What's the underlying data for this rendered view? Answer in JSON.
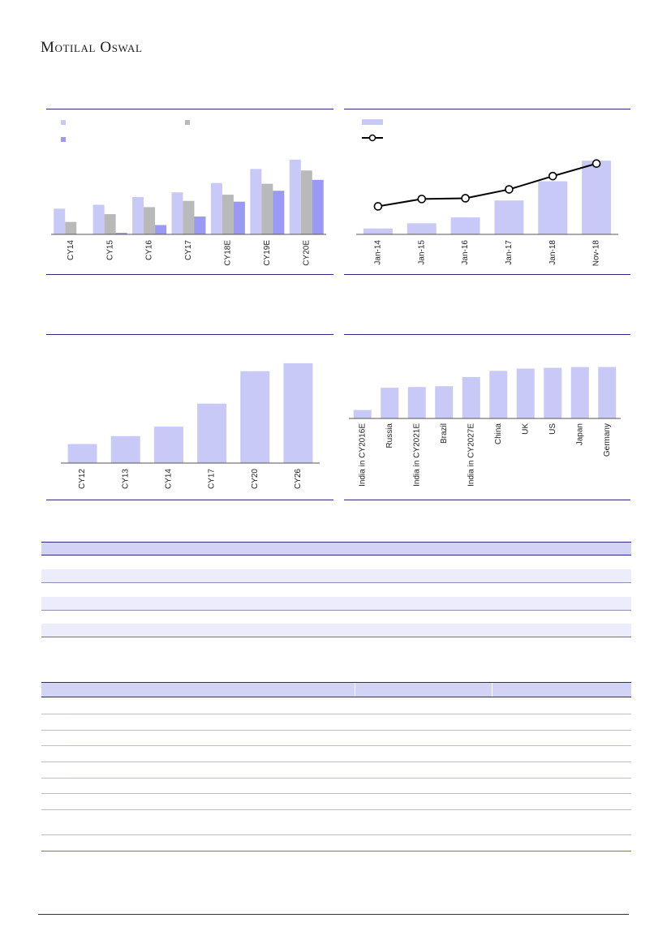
{
  "header": {
    "brand": "Motilal Oswal"
  },
  "colors": {
    "rule": "#2c2a7a",
    "series1": "#c9c9f7",
    "series2": "#b9b9b9",
    "series3": "#9a99f4",
    "line": "#000000"
  },
  "chart_data": [
    {
      "type": "bar",
      "categories": [
        "CY14",
        "CY15",
        "CY16",
        "CY17",
        "CY18E",
        "CY19E",
        "CY20E"
      ],
      "series": [
        {
          "values": [
            33,
            38,
            48,
            54,
            66,
            84,
            96
          ]
        },
        {
          "values": [
            16,
            26,
            35,
            43,
            51,
            65,
            82
          ]
        },
        {
          "values": [
            0,
            2,
            12,
            23,
            42,
            56,
            70
          ]
        }
      ],
      "ylim": [
        0,
        100
      ]
    },
    {
      "type": "bar+line",
      "categories": [
        "Jan-14",
        "Jan-15",
        "Jan-16",
        "Jan-17",
        "Jan-18",
        "Nov-18"
      ],
      "bars": [
        8,
        15,
        23,
        46,
        72,
        100
      ],
      "line": [
        38,
        48,
        49,
        61,
        79,
        96
      ],
      "ylim": [
        0,
        110
      ]
    },
    {
      "type": "bar",
      "categories": [
        "CY12",
        "CY13",
        "CY14",
        "CY17",
        "CY20",
        "CY26"
      ],
      "values": [
        24,
        34,
        46,
        75,
        116,
        126
      ],
      "ylim": [
        0,
        130
      ]
    },
    {
      "type": "bar",
      "categories": [
        "India in CY2016E",
        "Russia",
        "India in CY2021E",
        "Brazil",
        "India in CY2027E",
        "China",
        "UK",
        "US",
        "Japan",
        "Germany"
      ],
      "values": [
        11,
        40,
        41,
        42,
        54,
        62,
        65,
        66,
        67,
        67
      ],
      "ylim": [
        0,
        75
      ]
    }
  ]
}
